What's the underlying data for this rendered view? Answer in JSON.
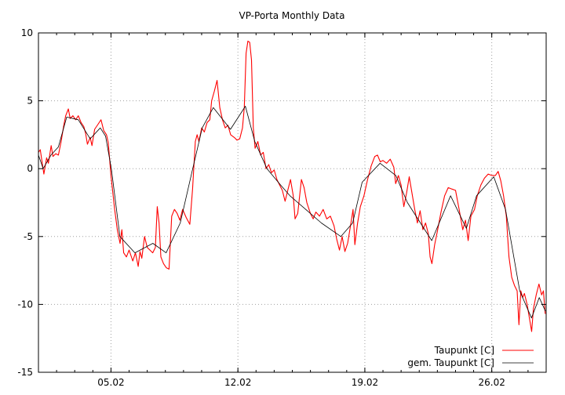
{
  "chart_data": {
    "type": "line",
    "title": "VP-Porta Monthly Data",
    "xlabel": "",
    "ylabel": "",
    "xlim": [
      1,
      29
    ],
    "ylim": [
      -15,
      10
    ],
    "yticks": [
      -15,
      -10,
      -5,
      0,
      5,
      10
    ],
    "xticks": [
      {
        "day": 5,
        "label": "05.02"
      },
      {
        "day": 12,
        "label": "12.02"
      },
      {
        "day": 19,
        "label": "19.02"
      },
      {
        "day": 26,
        "label": "26.02"
      }
    ],
    "grid": true,
    "legend_position": "bottom-right",
    "series": [
      {
        "name": "Taupunkt [C]",
        "color": "#ff0000",
        "points": [
          [
            1.0,
            1.2
          ],
          [
            1.1,
            1.4
          ],
          [
            1.2,
            0.5
          ],
          [
            1.3,
            -0.4
          ],
          [
            1.45,
            0.8
          ],
          [
            1.55,
            0.4
          ],
          [
            1.7,
            1.7
          ],
          [
            1.8,
            0.9
          ],
          [
            1.95,
            1.1
          ],
          [
            2.1,
            1.0
          ],
          [
            2.25,
            2.0
          ],
          [
            2.4,
            3.2
          ],
          [
            2.5,
            3.9
          ],
          [
            2.65,
            4.4
          ],
          [
            2.75,
            3.7
          ],
          [
            2.9,
            3.9
          ],
          [
            3.05,
            3.6
          ],
          [
            3.2,
            3.9
          ],
          [
            3.35,
            3.4
          ],
          [
            3.5,
            3.1
          ],
          [
            3.6,
            2.6
          ],
          [
            3.7,
            1.8
          ],
          [
            3.85,
            2.3
          ],
          [
            3.95,
            1.7
          ],
          [
            4.1,
            2.9
          ],
          [
            4.3,
            3.3
          ],
          [
            4.45,
            3.6
          ],
          [
            4.6,
            2.8
          ],
          [
            4.75,
            2.5
          ],
          [
            4.85,
            1.9
          ],
          [
            5.0,
            -0.5
          ],
          [
            5.2,
            -3.0
          ],
          [
            5.35,
            -4.5
          ],
          [
            5.5,
            -5.5
          ],
          [
            5.6,
            -4.5
          ],
          [
            5.7,
            -6.2
          ],
          [
            5.85,
            -6.5
          ],
          [
            6.0,
            -6.0
          ],
          [
            6.2,
            -6.8
          ],
          [
            6.35,
            -6.2
          ],
          [
            6.5,
            -7.2
          ],
          [
            6.6,
            -6.1
          ],
          [
            6.7,
            -6.6
          ],
          [
            6.85,
            -5.0
          ],
          [
            7.0,
            -5.8
          ],
          [
            7.15,
            -6.0
          ],
          [
            7.3,
            -6.2
          ],
          [
            7.45,
            -5.8
          ],
          [
            7.55,
            -2.8
          ],
          [
            7.65,
            -4.0
          ],
          [
            7.75,
            -6.5
          ],
          [
            7.9,
            -7.0
          ],
          [
            8.05,
            -7.3
          ],
          [
            8.2,
            -7.4
          ],
          [
            8.35,
            -3.5
          ],
          [
            8.5,
            -3.0
          ],
          [
            8.65,
            -3.3
          ],
          [
            8.8,
            -3.8
          ],
          [
            8.95,
            -3.0
          ],
          [
            9.15,
            -3.6
          ],
          [
            9.35,
            -4.1
          ],
          [
            9.5,
            -1.5
          ],
          [
            9.65,
            2.0
          ],
          [
            9.75,
            2.5
          ],
          [
            9.85,
            2.0
          ],
          [
            10.0,
            3.0
          ],
          [
            10.15,
            2.7
          ],
          [
            10.3,
            3.4
          ],
          [
            10.45,
            3.6
          ],
          [
            10.55,
            5.0
          ],
          [
            10.7,
            5.7
          ],
          [
            10.85,
            6.5
          ],
          [
            11.0,
            4.5
          ],
          [
            11.15,
            3.6
          ],
          [
            11.3,
            3.0
          ],
          [
            11.45,
            3.2
          ],
          [
            11.6,
            2.5
          ],
          [
            11.8,
            2.3
          ],
          [
            11.95,
            2.1
          ],
          [
            12.1,
            2.2
          ],
          [
            12.25,
            3.0
          ],
          [
            12.35,
            4.5
          ],
          [
            12.45,
            8.5
          ],
          [
            12.55,
            9.4
          ],
          [
            12.65,
            9.3
          ],
          [
            12.75,
            8.0
          ],
          [
            12.85,
            3.0
          ],
          [
            12.95,
            1.5
          ],
          [
            13.1,
            2.0
          ],
          [
            13.25,
            1.0
          ],
          [
            13.4,
            1.2
          ],
          [
            13.55,
            0
          ],
          [
            13.7,
            0.3
          ],
          [
            13.85,
            -0.3
          ],
          [
            14.0,
            -0.1
          ],
          [
            14.15,
            -0.8
          ],
          [
            14.3,
            -1.2
          ],
          [
            14.45,
            -1.6
          ],
          [
            14.6,
            -2.4
          ],
          [
            14.75,
            -1.6
          ],
          [
            14.9,
            -0.8
          ],
          [
            15.05,
            -2.0
          ],
          [
            15.15,
            -3.7
          ],
          [
            15.3,
            -3.3
          ],
          [
            15.5,
            -0.8
          ],
          [
            15.65,
            -1.4
          ],
          [
            15.8,
            -2.5
          ],
          [
            16.0,
            -3.3
          ],
          [
            16.15,
            -3.7
          ],
          [
            16.3,
            -3.2
          ],
          [
            16.5,
            -3.5
          ],
          [
            16.7,
            -3.0
          ],
          [
            16.9,
            -3.7
          ],
          [
            17.1,
            -3.5
          ],
          [
            17.3,
            -4.2
          ],
          [
            17.45,
            -5.2
          ],
          [
            17.6,
            -6.0
          ],
          [
            17.75,
            -5.0
          ],
          [
            17.9,
            -6.1
          ],
          [
            18.05,
            -5.5
          ],
          [
            18.2,
            -4.3
          ],
          [
            18.35,
            -3.0
          ],
          [
            18.45,
            -5.6
          ],
          [
            18.6,
            -4.0
          ],
          [
            18.75,
            -2.8
          ],
          [
            18.95,
            -2.0
          ],
          [
            19.15,
            -0.8
          ],
          [
            19.35,
            0.2
          ],
          [
            19.55,
            0.9
          ],
          [
            19.7,
            1.0
          ],
          [
            19.85,
            0.5
          ],
          [
            20.0,
            0.6
          ],
          [
            20.2,
            0.4
          ],
          [
            20.4,
            0.7
          ],
          [
            20.6,
            0.1
          ],
          [
            20.7,
            -1.1
          ],
          [
            20.85,
            -0.5
          ],
          [
            21.0,
            -1.2
          ],
          [
            21.15,
            -2.8
          ],
          [
            21.3,
            -1.8
          ],
          [
            21.45,
            -0.6
          ],
          [
            21.6,
            -1.8
          ],
          [
            21.75,
            -3.0
          ],
          [
            21.9,
            -4.0
          ],
          [
            22.05,
            -3.1
          ],
          [
            22.2,
            -4.5
          ],
          [
            22.35,
            -4.0
          ],
          [
            22.5,
            -4.8
          ],
          [
            22.6,
            -6.5
          ],
          [
            22.7,
            -7.0
          ],
          [
            22.85,
            -5.6
          ],
          [
            23.0,
            -4.6
          ],
          [
            23.2,
            -3.2
          ],
          [
            23.4,
            -2.0
          ],
          [
            23.6,
            -1.4
          ],
          [
            23.8,
            -1.5
          ],
          [
            24.0,
            -1.6
          ],
          [
            24.2,
            -3.0
          ],
          [
            24.4,
            -4.5
          ],
          [
            24.55,
            -3.8
          ],
          [
            24.7,
            -5.3
          ],
          [
            24.85,
            -3.5
          ],
          [
            25.05,
            -3.0
          ],
          [
            25.2,
            -2.0
          ],
          [
            25.4,
            -1.2
          ],
          [
            25.6,
            -0.7
          ],
          [
            25.8,
            -0.4
          ],
          [
            26.0,
            -0.5
          ],
          [
            26.2,
            -0.5
          ],
          [
            26.35,
            -0.2
          ],
          [
            26.5,
            -0.9
          ],
          [
            26.65,
            -2.0
          ],
          [
            26.8,
            -3.5
          ],
          [
            26.95,
            -6.5
          ],
          [
            27.1,
            -8.0
          ],
          [
            27.25,
            -8.6
          ],
          [
            27.4,
            -9.0
          ],
          [
            27.5,
            -11.5
          ],
          [
            27.6,
            -9.0
          ],
          [
            27.7,
            -9.5
          ],
          [
            27.8,
            -9.2
          ],
          [
            27.95,
            -10.0
          ],
          [
            28.1,
            -11.2
          ],
          [
            28.2,
            -12.0
          ],
          [
            28.3,
            -10.3
          ],
          [
            28.45,
            -9.3
          ],
          [
            28.6,
            -8.5
          ],
          [
            28.75,
            -9.3
          ],
          [
            28.85,
            -9.0
          ],
          [
            28.95,
            -10.7
          ]
        ]
      },
      {
        "name": "gem. Taupunkt [C]",
        "color": "#000000",
        "points": [
          [
            1.0,
            1.0
          ],
          [
            1.26,
            0
          ],
          [
            1.69,
            1.0
          ],
          [
            2.1,
            1.6
          ],
          [
            2.56,
            3.8
          ],
          [
            3.2,
            3.6
          ],
          [
            3.85,
            2.2
          ],
          [
            4.41,
            3.0
          ],
          [
            4.7,
            2.4
          ],
          [
            5.02,
            0
          ],
          [
            5.49,
            -5
          ],
          [
            6.32,
            -6.2
          ],
          [
            7.31,
            -5.5
          ],
          [
            8.04,
            -6.2
          ],
          [
            8.82,
            -4
          ],
          [
            9.51,
            0
          ],
          [
            10.03,
            3
          ],
          [
            10.64,
            4.5
          ],
          [
            11.59,
            2.9
          ],
          [
            12.41,
            4.6
          ],
          [
            12.93,
            2
          ],
          [
            13.6,
            0
          ],
          [
            14.35,
            -1.2
          ],
          [
            14.87,
            -2
          ],
          [
            15.74,
            -3
          ],
          [
            16.6,
            -4
          ],
          [
            17.68,
            -5
          ],
          [
            18.33,
            -4
          ],
          [
            18.85,
            -1
          ],
          [
            19.84,
            0.4
          ],
          [
            20.71,
            -0.5
          ],
          [
            21.35,
            -2.5
          ],
          [
            22.69,
            -5.3
          ],
          [
            23.73,
            -2
          ],
          [
            24.6,
            -4.4
          ],
          [
            25.16,
            -2
          ],
          [
            26.11,
            -0.6
          ],
          [
            26.76,
            -3
          ],
          [
            27.54,
            -9
          ],
          [
            28.19,
            -11
          ],
          [
            28.62,
            -9.5
          ],
          [
            28.96,
            -10.5
          ]
        ]
      }
    ]
  }
}
